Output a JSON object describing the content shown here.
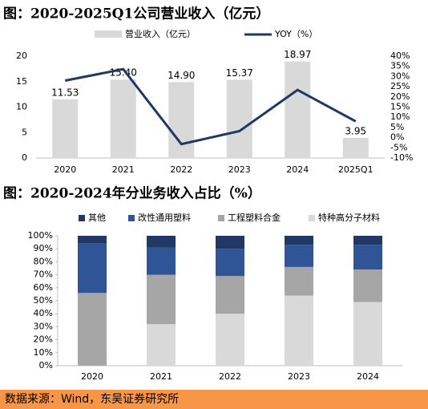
{
  "chart_data": [
    {
      "type": "combo",
      "title": "图：2020-2025Q1公司营业收入（亿元）",
      "categories": [
        "2020",
        "2021",
        "2022",
        "2023",
        "2024",
        "2025Q1"
      ],
      "series": [
        {
          "name": "营业收入（亿元）",
          "color": "#d9d9d9",
          "mark": "bar",
          "values": [
            11.53,
            15.4,
            14.9,
            15.37,
            18.97,
            3.95
          ],
          "value_labels": [
            "11.53",
            "15.40",
            "14.90",
            "15.37",
            "18.97",
            "3.95"
          ]
        },
        {
          "name": "YOY（%）",
          "color": "#1f3864",
          "mark": "line",
          "axis": "y2",
          "values": [
            28,
            33.6,
            -3.2,
            3.2,
            23.4,
            8
          ]
        }
      ],
      "ylim": [
        0,
        20
      ],
      "yticks": [
        0,
        5,
        10,
        15,
        20
      ],
      "y2lim": [
        -10,
        40
      ],
      "y2ticks": [
        {
          "value": -10,
          "label": "-10%"
        },
        {
          "value": -5,
          "label": "-5%"
        },
        {
          "value": 0,
          "label": "0%"
        },
        {
          "value": 5,
          "label": "5%"
        },
        {
          "value": 10,
          "label": "10%"
        },
        {
          "value": 15,
          "label": "15%"
        },
        {
          "value": 20,
          "label": "20%"
        },
        {
          "value": 25,
          "label": "25%"
        },
        {
          "value": 30,
          "label": "30%"
        },
        {
          "value": 35,
          "label": "35%"
        },
        {
          "value": 40,
          "label": "40%"
        }
      ]
    },
    {
      "type": "stacked_bar",
      "title": "图：2020-2024年分业务收入占比（%）",
      "categories": [
        "2020",
        "2021",
        "2022",
        "2023",
        "2024"
      ],
      "series": [
        {
          "name": "其他",
          "color": "#1f3864",
          "values": [
            6,
            9,
            10,
            7,
            7
          ]
        },
        {
          "name": "改性通用塑料",
          "color": "#2f5597",
          "values": [
            38,
            21,
            21,
            17,
            19
          ]
        },
        {
          "name": "工程塑料合金",
          "color": "#a6a6a6",
          "values": [
            56,
            38,
            29,
            22,
            25
          ]
        },
        {
          "name": "特种高分子材料",
          "color": "#d9d9d9",
          "values": [
            0,
            32,
            40,
            54,
            49
          ]
        }
      ],
      "ylim": [
        0,
        100
      ],
      "yticks": [
        {
          "value": 0,
          "label": "0%"
        },
        {
          "value": 10,
          "label": "10%"
        },
        {
          "value": 20,
          "label": "20%"
        },
        {
          "value": 30,
          "label": "30%"
        },
        {
          "value": 40,
          "label": "40%"
        },
        {
          "value": 50,
          "label": "50%"
        },
        {
          "value": 60,
          "label": "60%"
        },
        {
          "value": 70,
          "label": "70%"
        },
        {
          "value": 80,
          "label": "80%"
        },
        {
          "value": 90,
          "label": "90%"
        },
        {
          "value": 100,
          "label": "100%"
        }
      ]
    }
  ],
  "footer": {
    "source": "数据来源：Wind，东吴证券研究所"
  }
}
